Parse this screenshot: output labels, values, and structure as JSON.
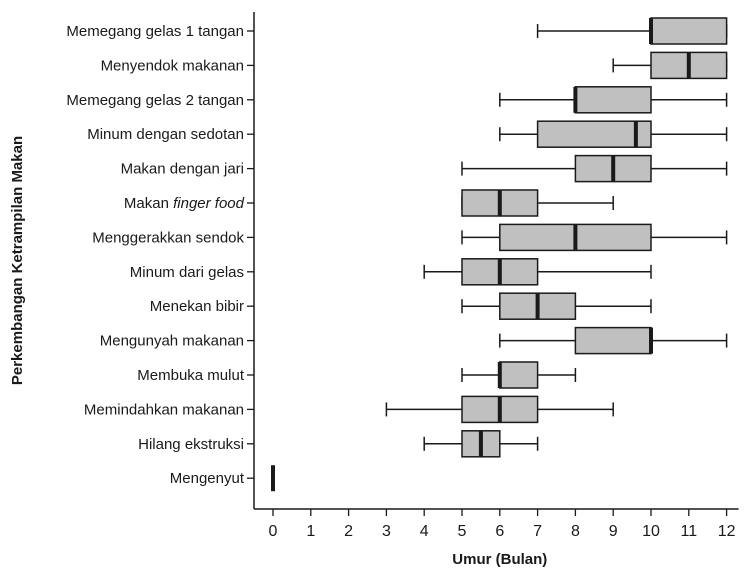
{
  "chart_data": {
    "type": "boxplot",
    "orientation": "horizontal",
    "xlabel": "Umur (Bulan)",
    "ylabel": "Perkembangan Ketrampilan Makan",
    "xlim": [
      0,
      12
    ],
    "xticks": [
      0,
      1,
      2,
      3,
      4,
      5,
      6,
      7,
      8,
      9,
      10,
      11,
      12
    ],
    "colors": {
      "box_fill": "#c0c0c0",
      "box_stroke": "#1a1a1a",
      "median": "#1a1a1a",
      "axis": "#1a1a1a"
    },
    "categories": [
      {
        "label": "Memegang gelas 1 tangan",
        "min": 7,
        "q1": 10,
        "median": 10,
        "q3": 12,
        "max": 12
      },
      {
        "label": "Menyendok makanan",
        "min": 9,
        "q1": 10,
        "median": 11,
        "q3": 12,
        "max": 12
      },
      {
        "label": "Memegang gelas 2 tangan",
        "min": 6,
        "q1": 8,
        "median": 8,
        "q3": 10,
        "max": 12
      },
      {
        "label": "Minum dengan sedotan",
        "min": 6,
        "q1": 7,
        "median": 9.6,
        "q3": 10,
        "max": 12
      },
      {
        "label": "Makan dengan jari",
        "min": 5,
        "q1": 8,
        "median": 9,
        "q3": 10,
        "max": 12
      },
      {
        "label_parts": [
          "Makan ",
          "finger food"
        ],
        "min": 5,
        "q1": 5,
        "median": 6,
        "q3": 7,
        "max": 9
      },
      {
        "label": "Menggerakkan sendok",
        "min": 5,
        "q1": 6,
        "median": 8,
        "q3": 10,
        "max": 12
      },
      {
        "label": "Minum dari gelas",
        "min": 4,
        "q1": 5,
        "median": 6,
        "q3": 7,
        "max": 10
      },
      {
        "label": "Menekan bibir",
        "min": 5,
        "q1": 6,
        "median": 7,
        "q3": 8,
        "max": 10
      },
      {
        "label": "Mengunyah makanan",
        "min": 6,
        "q1": 8,
        "median": 10,
        "q3": 10,
        "max": 12
      },
      {
        "label": "Membuka mulut",
        "min": 5,
        "q1": 6,
        "median": 6,
        "q3": 7,
        "max": 8
      },
      {
        "label": "Memindahkan makanan",
        "min": 3,
        "q1": 5,
        "median": 6,
        "q3": 7,
        "max": 9
      },
      {
        "label": "Hilang ekstruksi",
        "min": 4,
        "q1": 5,
        "median": 5.5,
        "q3": 6,
        "max": 7
      },
      {
        "label": "Mengenyut",
        "min": 0,
        "q1": 0,
        "median": 0,
        "q3": 0,
        "max": 0
      }
    ]
  }
}
